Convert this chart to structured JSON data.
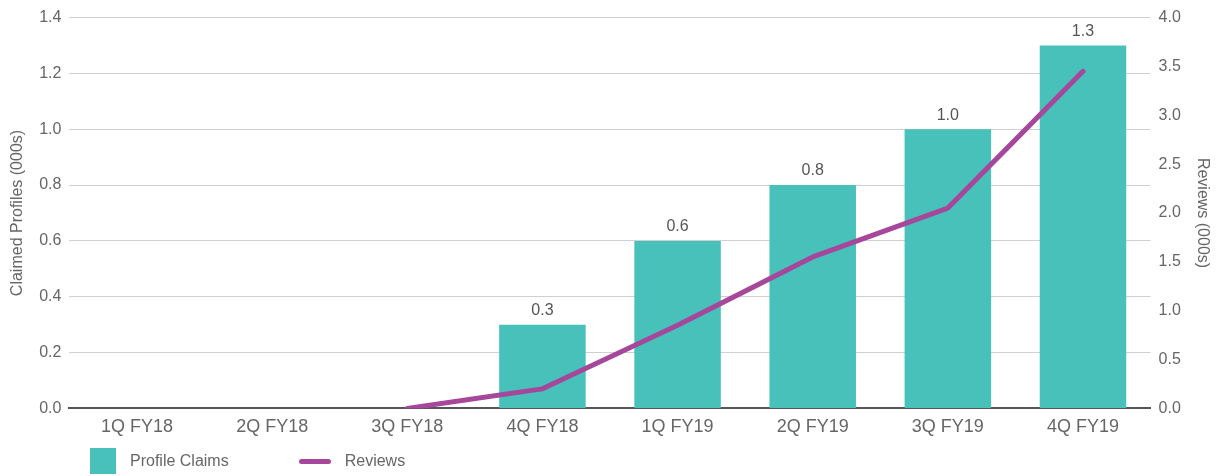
{
  "chart_data": {
    "type": "bar",
    "categories": [
      "1Q FY18",
      "2Q FY18",
      "3Q FY18",
      "4Q FY18",
      "1Q FY19",
      "2Q FY19",
      "3Q FY19",
      "4Q FY19"
    ],
    "ylabel": "Claimed Profiles (000s)",
    "y2label": "Reviews (000s)",
    "series": [
      {
        "name": "Profile Claims",
        "color": "#47c1b9",
        "values": [
          null,
          null,
          null,
          0.3,
          0.6,
          0.8,
          1.0,
          1.3
        ],
        "value_labels": [
          null,
          null,
          null,
          "0.3",
          "0.6",
          "0.8",
          "1.0",
          "1.3"
        ]
      },
      {
        "name": "Reviews",
        "type": "line",
        "axis": "y2",
        "color": "#a6479b",
        "values": [
          null,
          null,
          0.0,
          0.2,
          0.85,
          1.55,
          2.05,
          3.45
        ]
      }
    ],
    "ylim": [
      0,
      1.4
    ],
    "yticks": [
      {
        "value": 0,
        "label": "0.0"
      },
      {
        "value": 0.2,
        "label": "0.2"
      },
      {
        "value": 0.4,
        "label": "0.4"
      },
      {
        "value": 0.6,
        "label": "0.6"
      },
      {
        "value": 0.8,
        "label": "0.8"
      },
      {
        "value": 1.0,
        "label": "1.0"
      },
      {
        "value": 1.2,
        "label": "1.2"
      },
      {
        "value": 1.4,
        "label": "1.4"
      }
    ],
    "y2lim": [
      0,
      4
    ],
    "y2ticks": [
      {
        "value": 0,
        "label": "0.0"
      },
      {
        "value": 0.5,
        "label": "0.5"
      },
      {
        "value": 1,
        "label": "1.0"
      },
      {
        "value": 1.5,
        "label": "1.5"
      },
      {
        "value": 2,
        "label": "2.0"
      },
      {
        "value": 2.5,
        "label": "2.5"
      },
      {
        "value": 3,
        "label": "3.0"
      },
      {
        "value": 3.5,
        "label": "3.5"
      },
      {
        "value": 4,
        "label": "4.0"
      }
    ],
    "grid": "y",
    "legend": "bottom left",
    "marker": "none"
  }
}
